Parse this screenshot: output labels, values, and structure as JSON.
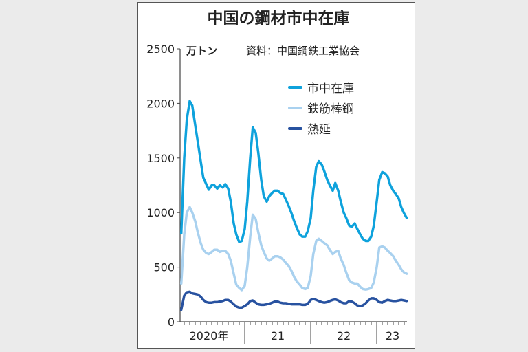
{
  "chart_data": {
    "type": "line",
    "title": "中国の鋼材市中在庫",
    "ylabel": "万トン",
    "source": "資料：中国鋼鉄工業協会",
    "ylim": [
      0,
      2500
    ],
    "yticks": [
      0,
      500,
      1000,
      1500,
      2000,
      2500
    ],
    "xtick_labels": [
      "2020年",
      "21",
      "22",
      "23"
    ],
    "legend_position": "top-right",
    "grid": false,
    "x": [
      "2020-01-15",
      "2020-02-01",
      "2020-02-15",
      "2020-03-01",
      "2020-03-15",
      "2020-04-01",
      "2020-04-15",
      "2020-05-01",
      "2020-05-15",
      "2020-06-01",
      "2020-06-15",
      "2020-07-01",
      "2020-07-15",
      "2020-08-01",
      "2020-08-15",
      "2020-09-01",
      "2020-09-15",
      "2020-10-01",
      "2020-10-15",
      "2020-11-01",
      "2020-11-15",
      "2020-12-01",
      "2020-12-15",
      "2021-01-01",
      "2021-01-15",
      "2021-02-01",
      "2021-02-15",
      "2021-03-01",
      "2021-03-15",
      "2021-04-01",
      "2021-04-15",
      "2021-05-01",
      "2021-05-15",
      "2021-06-01",
      "2021-06-15",
      "2021-07-01",
      "2021-07-15",
      "2021-08-01",
      "2021-08-15",
      "2021-09-01",
      "2021-09-15",
      "2021-10-01",
      "2021-10-15",
      "2021-11-01",
      "2021-11-15",
      "2021-12-01",
      "2021-12-15",
      "2022-01-01",
      "2022-01-15",
      "2022-02-01",
      "2022-02-15",
      "2022-03-01",
      "2022-03-15",
      "2022-04-01",
      "2022-04-15",
      "2022-05-01",
      "2022-05-15",
      "2022-06-01",
      "2022-06-15",
      "2022-07-01",
      "2022-07-15",
      "2022-08-01",
      "2022-08-15",
      "2022-09-01",
      "2022-09-15",
      "2022-10-01",
      "2022-10-15",
      "2022-11-01",
      "2022-11-15",
      "2022-12-01",
      "2022-12-15",
      "2023-01-01",
      "2023-01-15",
      "2023-02-01",
      "2023-02-15",
      "2023-03-01",
      "2023-03-15",
      "2023-04-01",
      "2023-04-15",
      "2023-05-01",
      "2023-05-15",
      "2023-06-01",
      "2023-06-15"
    ],
    "series": [
      {
        "name": "市中在庫",
        "color": "#0ea2dc",
        "values": [
          810,
          1500,
          1850,
          2020,
          1980,
          1800,
          1650,
          1470,
          1320,
          1260,
          1210,
          1250,
          1250,
          1220,
          1250,
          1230,
          1260,
          1220,
          1100,
          900,
          800,
          730,
          740,
          850,
          1100,
          1500,
          1780,
          1730,
          1550,
          1300,
          1150,
          1100,
          1150,
          1180,
          1200,
          1200,
          1180,
          1170,
          1120,
          1060,
          1000,
          920,
          860,
          800,
          780,
          780,
          830,
          950,
          1200,
          1420,
          1470,
          1440,
          1380,
          1300,
          1250,
          1200,
          1270,
          1200,
          1100,
          1000,
          950,
          880,
          870,
          900,
          850,
          800,
          760,
          740,
          740,
          780,
          880,
          1100,
          1300,
          1370,
          1360,
          1330,
          1250,
          1200,
          1170,
          1130,
          1050,
          990,
          950
        ]
      },
      {
        "name": "鉄筋棒鋼",
        "color": "#a9d1ef",
        "values": [
          350,
          800,
          1000,
          1050,
          1000,
          920,
          820,
          720,
          660,
          630,
          620,
          640,
          660,
          660,
          640,
          650,
          650,
          620,
          560,
          440,
          340,
          310,
          290,
          330,
          500,
          780,
          980,
          940,
          820,
          700,
          640,
          580,
          560,
          580,
          600,
          600,
          590,
          570,
          540,
          510,
          470,
          410,
          370,
          340,
          310,
          300,
          310,
          420,
          620,
          740,
          760,
          740,
          720,
          700,
          660,
          620,
          640,
          650,
          580,
          520,
          450,
          380,
          360,
          350,
          350,
          320,
          300,
          295,
          300,
          310,
          360,
          500,
          680,
          690,
          680,
          650,
          630,
          600,
          560,
          520,
          480,
          450,
          440
        ]
      },
      {
        "name": "熱延",
        "color": "#2852a0",
        "values": [
          110,
          240,
          270,
          275,
          260,
          255,
          250,
          230,
          200,
          180,
          175,
          175,
          180,
          180,
          185,
          190,
          200,
          200,
          185,
          160,
          140,
          130,
          130,
          145,
          160,
          190,
          195,
          175,
          160,
          155,
          155,
          160,
          165,
          175,
          185,
          185,
          175,
          170,
          170,
          165,
          160,
          160,
          160,
          160,
          155,
          155,
          165,
          200,
          210,
          200,
          190,
          180,
          175,
          180,
          190,
          200,
          205,
          195,
          180,
          170,
          170,
          190,
          185,
          170,
          150,
          145,
          150,
          170,
          195,
          215,
          215,
          200,
          180,
          175,
          190,
          200,
          195,
          190,
          190,
          195,
          200,
          195,
          190
        ]
      }
    ]
  }
}
